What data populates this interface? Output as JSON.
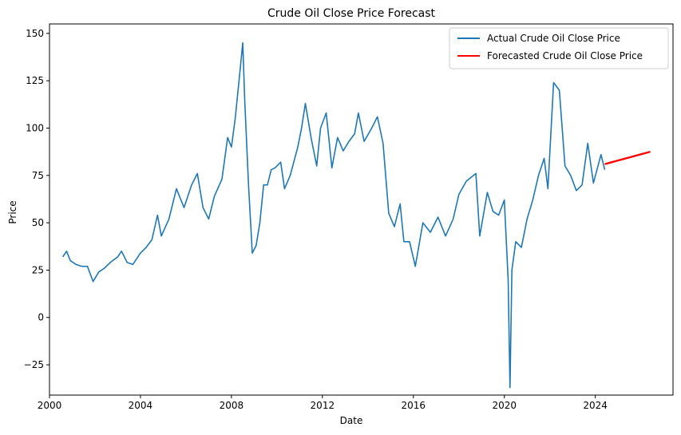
{
  "chart_data": {
    "type": "line",
    "title": "Crude Oil Close Price Forecast",
    "xlabel": "Date",
    "ylabel": "Price",
    "xlim": [
      "2000-01-01",
      "2027-06-01"
    ],
    "ylim": [
      -41,
      155
    ],
    "x_ticks": [
      "2000",
      "2004",
      "2008",
      "2012",
      "2016",
      "2020",
      "2024"
    ],
    "y_ticks": [
      "−25",
      "0",
      "25",
      "50",
      "75",
      "100",
      "125",
      "150"
    ],
    "grid": false,
    "legend_placement": "top-right",
    "series": [
      {
        "name": "Actual Crude Oil Close Price",
        "color": "#1f77b4",
        "points": [
          [
            "2000-08",
            32
          ],
          [
            "2000-10",
            35
          ],
          [
            "2000-12",
            30
          ],
          [
            "2001-03",
            28
          ],
          [
            "2001-06",
            27
          ],
          [
            "2001-09",
            27
          ],
          [
            "2001-12",
            19
          ],
          [
            "2002-03",
            24
          ],
          [
            "2002-06",
            26
          ],
          [
            "2002-09",
            29
          ],
          [
            "2003-01",
            32
          ],
          [
            "2003-03",
            35
          ],
          [
            "2003-06",
            29
          ],
          [
            "2003-09",
            28
          ],
          [
            "2004-01",
            34
          ],
          [
            "2004-04",
            37
          ],
          [
            "2004-07",
            41
          ],
          [
            "2004-10",
            54
          ],
          [
            "2004-12",
            43
          ],
          [
            "2005-04",
            52
          ],
          [
            "2005-08",
            68
          ],
          [
            "2005-12",
            58
          ],
          [
            "2006-04",
            70
          ],
          [
            "2006-07",
            76
          ],
          [
            "2006-10",
            58
          ],
          [
            "2007-01",
            52
          ],
          [
            "2007-04",
            64
          ],
          [
            "2007-08",
            73
          ],
          [
            "2007-11",
            95
          ],
          [
            "2008-01",
            90
          ],
          [
            "2008-03",
            105
          ],
          [
            "2008-05",
            125
          ],
          [
            "2008-07",
            145
          ],
          [
            "2008-08",
            115
          ],
          [
            "2008-10",
            70
          ],
          [
            "2008-12",
            34
          ],
          [
            "2009-02",
            38
          ],
          [
            "2009-04",
            50
          ],
          [
            "2009-06",
            70
          ],
          [
            "2009-08",
            70
          ],
          [
            "2009-10",
            78
          ],
          [
            "2009-12",
            79
          ],
          [
            "2010-03",
            82
          ],
          [
            "2010-05",
            68
          ],
          [
            "2010-08",
            75
          ],
          [
            "2010-12",
            90
          ],
          [
            "2011-02",
            100
          ],
          [
            "2011-04",
            113
          ],
          [
            "2011-07",
            95
          ],
          [
            "2011-10",
            80
          ],
          [
            "2011-12",
            100
          ],
          [
            "2012-03",
            108
          ],
          [
            "2012-06",
            79
          ],
          [
            "2012-09",
            95
          ],
          [
            "2012-12",
            88
          ],
          [
            "2013-03",
            93
          ],
          [
            "2013-06",
            97
          ],
          [
            "2013-08",
            108
          ],
          [
            "2013-11",
            93
          ],
          [
            "2014-03",
            100
          ],
          [
            "2014-06",
            106
          ],
          [
            "2014-09",
            92
          ],
          [
            "2014-12",
            55
          ],
          [
            "2015-03",
            48
          ],
          [
            "2015-06",
            60
          ],
          [
            "2015-08",
            40
          ],
          [
            "2015-11",
            40
          ],
          [
            "2016-02",
            27
          ],
          [
            "2016-06",
            50
          ],
          [
            "2016-10",
            45
          ],
          [
            "2017-02",
            53
          ],
          [
            "2017-06",
            43
          ],
          [
            "2017-10",
            52
          ],
          [
            "2018-01",
            65
          ],
          [
            "2018-05",
            72
          ],
          [
            "2018-10",
            76
          ],
          [
            "2018-12",
            43
          ],
          [
            "2019-04",
            66
          ],
          [
            "2019-07",
            56
          ],
          [
            "2019-10",
            54
          ],
          [
            "2020-01",
            62
          ],
          [
            "2020-03",
            20
          ],
          [
            "2020-04",
            -37
          ],
          [
            "2020-05",
            25
          ],
          [
            "2020-07",
            40
          ],
          [
            "2020-10",
            37
          ],
          [
            "2021-01",
            52
          ],
          [
            "2021-04",
            62
          ],
          [
            "2021-07",
            75
          ],
          [
            "2021-10",
            84
          ],
          [
            "2021-12",
            68
          ],
          [
            "2022-03",
            124
          ],
          [
            "2022-06",
            120
          ],
          [
            "2022-09",
            80
          ],
          [
            "2022-12",
            75
          ],
          [
            "2023-03",
            67
          ],
          [
            "2023-06",
            70
          ],
          [
            "2023-09",
            92
          ],
          [
            "2023-12",
            71
          ],
          [
            "2024-04",
            86
          ],
          [
            "2024-06",
            78
          ]
        ]
      },
      {
        "name": "Forecasted Crude Oil Close Price",
        "color": "#ff0000",
        "points": [
          [
            "2024-06",
            81
          ],
          [
            "2026-06",
            87.5
          ]
        ]
      }
    ]
  }
}
